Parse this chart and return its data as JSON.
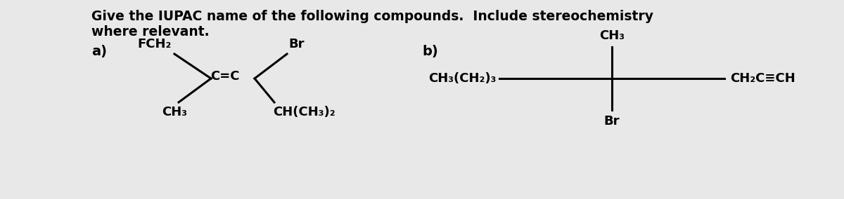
{
  "bg_color": "#e8e8e8",
  "text_color": "#000000",
  "title_line1": "Give the IUPAC name of the following compounds.  Include stereochemistry",
  "title_line2": "where relevant.",
  "label_a": "a)",
  "label_b": "b)",
  "font_size_title": 13.5,
  "font_size_label": 14,
  "font_size_chem": 13,
  "fig_width": 12.0,
  "fig_height": 2.84,
  "dpi": 100
}
